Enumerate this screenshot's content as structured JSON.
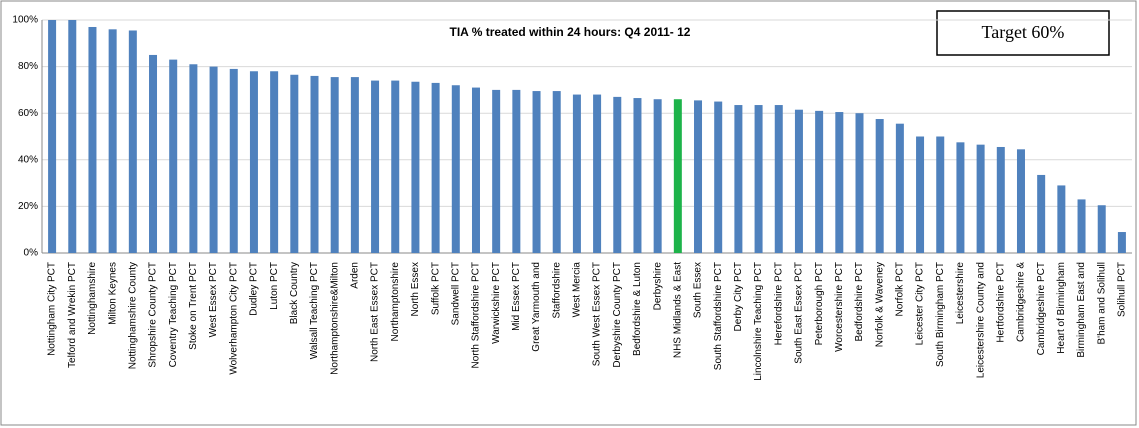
{
  "chart_data": {
    "type": "bar",
    "title": "TIA % treated within 24 hours:  Q4 2011- 12",
    "annotation": "Target 60%",
    "categories": [
      "Nottingham City PCT",
      "Telford and Wrekin PCT",
      "Nottinghamshire",
      "Milton Keynes",
      "Nottinghamshire County",
      "Shropshire County PCT",
      "Coventry Teaching PCT",
      "Stoke on Trent PCT",
      "West Essex PCT",
      "Wolverhampton City PCT",
      "Dudley PCT",
      "Luton PCT",
      "Black Country",
      "Walsall Teaching PCT",
      "Northamptonshire&Milton",
      "Arden",
      "North East Essex PCT",
      "Northamptonshire",
      "North Essex",
      "Suffolk PCT",
      "Sandwell PCT",
      "North Staffordshire PCT",
      "Warwickshire PCT",
      "Mid Essex PCT",
      "Great Yarmouth and",
      "Staffordshire",
      "West Mercia",
      "South West Essex PCT",
      "Derbyshire County PCT",
      "Bedfordshire & Luton",
      "Derbyshire",
      "NHS Midlands & East",
      "South Essex",
      "South Staffordshire PCT",
      "Derby City PCT",
      "Lincolnshire Teaching PCT",
      "Herefordshire PCT",
      "South East Essex PCT",
      "Peterborough PCT",
      "Worcestershire PCT",
      "Bedfordshire PCT",
      "Norfolk & Waveney",
      "Norfolk PCT",
      "Leicester City PCT",
      "South Birmingham PCT",
      "Leicestershire",
      "Leicestershire County and",
      "Hertfordshire PCT",
      "Cambridgeshire &",
      "Cambridgeshire PCT",
      "Heart of Birmingham",
      "Birmingham East and",
      "B'ham and Solihull",
      "Solihull PCT"
    ],
    "values": [
      100,
      100,
      97,
      96,
      95.5,
      85,
      83,
      81,
      80,
      79,
      78,
      78,
      76.5,
      76,
      75.5,
      75.5,
      74,
      74,
      73.5,
      73,
      72,
      71,
      70,
      70,
      69.5,
      69.5,
      68,
      68,
      67,
      66.5,
      66,
      66,
      65.5,
      65,
      63.5,
      63.5,
      63.5,
      61.5,
      61,
      60.5,
      60,
      57.5,
      55.5,
      50,
      50,
      47.5,
      46.5,
      45.5,
      44.5,
      33.5,
      29,
      23,
      20.5,
      9
    ],
    "colors": [
      "#4f81bd",
      "#4f81bd",
      "#4f81bd",
      "#4f81bd",
      "#4f81bd",
      "#4f81bd",
      "#4f81bd",
      "#4f81bd",
      "#4f81bd",
      "#4f81bd",
      "#4f81bd",
      "#4f81bd",
      "#4f81bd",
      "#4f81bd",
      "#4f81bd",
      "#4f81bd",
      "#4f81bd",
      "#4f81bd",
      "#4f81bd",
      "#4f81bd",
      "#4f81bd",
      "#4f81bd",
      "#4f81bd",
      "#4f81bd",
      "#4f81bd",
      "#4f81bd",
      "#4f81bd",
      "#4f81bd",
      "#4f81bd",
      "#4f81bd",
      "#4f81bd",
      "#1db34a",
      "#4f81bd",
      "#4f81bd",
      "#4f81bd",
      "#4f81bd",
      "#4f81bd",
      "#4f81bd",
      "#4f81bd",
      "#4f81bd",
      "#4f81bd",
      "#4f81bd",
      "#4f81bd",
      "#4f81bd",
      "#4f81bd",
      "#4f81bd",
      "#4f81bd",
      "#4f81bd",
      "#4f81bd",
      "#4f81bd",
      "#4f81bd",
      "#4f81bd",
      "#4f81bd",
      "#4f81bd"
    ],
    "ylim": [
      0,
      100
    ],
    "yticks": [
      {
        "value": 0,
        "label": "0%"
      },
      {
        "value": 20,
        "label": "20%"
      },
      {
        "value": 40,
        "label": "40%"
      },
      {
        "value": 60,
        "label": "60%"
      },
      {
        "value": 80,
        "label": "80%"
      },
      {
        "value": 100,
        "label": "100%"
      }
    ],
    "grid": true
  }
}
